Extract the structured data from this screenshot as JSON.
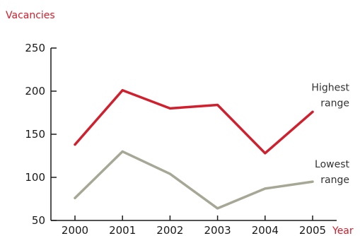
{
  "chart_data": {
    "type": "line",
    "title": "",
    "ylabel": "Vacancies",
    "xlabel": "Year",
    "x": [
      "2000",
      "2001",
      "2002",
      "2003",
      "2004",
      "2005"
    ],
    "ylim": [
      50,
      250
    ],
    "yticks": [
      50,
      100,
      150,
      200,
      250
    ],
    "grid": false,
    "legend": "inline labels at right end of each line",
    "series": [
      {
        "name_lines": [
          "Highest",
          "range"
        ],
        "color": "#d0202e",
        "values": [
          138,
          201,
          180,
          184,
          128,
          176
        ]
      },
      {
        "name_lines": [
          "Lowest",
          "range"
        ],
        "color": "#a7a796",
        "values": [
          76,
          130,
          104,
          64,
          87,
          95
        ]
      }
    ]
  }
}
